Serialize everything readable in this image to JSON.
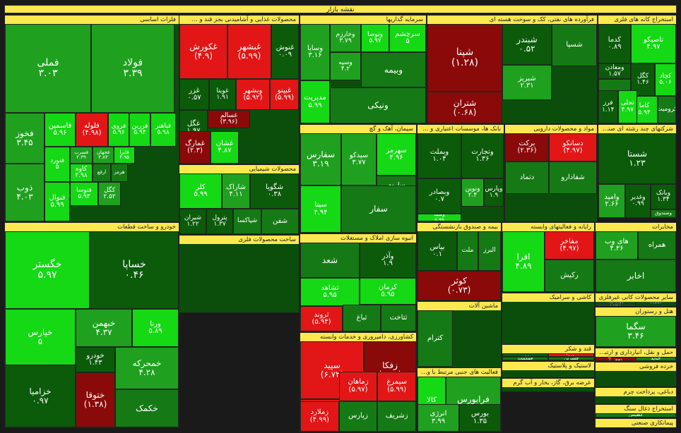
{
  "title": "نقشه بازار",
  "colors": {
    "strong_pos": "#14d914",
    "pos": "#1fa11f",
    "mild_pos": "#157a15",
    "neutral": "#0b5b0b",
    "neg": "#e21616",
    "strong_neg": "#8a0a0a"
  },
  "chart_data": {
    "type": "treemap",
    "sectors": [
      {
        "name": "فلزات اساسی",
        "tiles": [
          {
            "symbol": "فملی",
            "change": "3.03"
          },
          {
            "symbol": "فولاد",
            "change": "3.39"
          },
          {
            "symbol": "فخوز",
            "change": "3.45"
          },
          {
            "symbol": "فاسمین",
            "change": "5.96"
          },
          {
            "symbol": "فلوله",
            "change": "(4.98)"
          },
          {
            "symbol": "فروی",
            "change": "5.96"
          },
          {
            "symbol": "فزرین",
            "change": "5.94"
          },
          {
            "symbol": "فباهنر",
            "change": "5.98"
          },
          {
            "symbol": "فنورد",
            "change": "5"
          },
          {
            "symbol": "فسرب",
            "change": "2.39"
          },
          {
            "symbol": "فجهان",
            "change": "3.83"
          },
          {
            "symbol": "فایرا",
            "change": "4.95"
          },
          {
            "symbol": "ذوب",
            "change": "4.03"
          },
          {
            "symbol": "کاوه",
            "change": "4.98"
          },
          {
            "symbol": "ارفع",
            "change": ""
          },
          {
            "symbol": "هرمز",
            "change": ""
          },
          {
            "symbol": "فتوسا",
            "change": "5.93"
          },
          {
            "symbol": "کگل",
            "change": "2.52"
          },
          {
            "symbol": "فنوال",
            "change": "5.99"
          }
        ]
      },
      {
        "name": "محصولات غذایی و آشامیدنی بجز قند و ...",
        "tiles": [
          {
            "symbol": "غکورش",
            "change": "(4.9)"
          },
          {
            "symbol": "غبشهر",
            "change": "(5.99)"
          },
          {
            "symbol": "غنوش",
            "change": "0.09"
          },
          {
            "symbol": "غزر",
            "change": "0.57"
          },
          {
            "symbol": "غویتا",
            "change": "1.91"
          },
          {
            "symbol": "وبشهر",
            "change": "(5.92)"
          },
          {
            "symbol": "غبینو",
            "change": "(5.99)"
          },
          {
            "symbol": "غگل",
            "change": "1.97"
          },
          {
            "symbol": "غسالم",
            "change": "(3.96)"
          },
          {
            "symbol": "غمارگ",
            "change": "(2.3)"
          },
          {
            "symbol": "غشان",
            "change": "4.87"
          }
        ]
      },
      {
        "name": "سرمایه گذاریها",
        "tiles": [
          {
            "symbol": "وسایا",
            "change": "3.16"
          },
          {
            "symbol": "وخارزم",
            "change": "3.79"
          },
          {
            "symbol": "وتوصا",
            "change": "5.97"
          },
          {
            "symbol": "سرچشم",
            "change": "5"
          },
          {
            "symbol": "وسپه",
            "change": "4.2"
          },
          {
            "symbol": "مدیریت",
            "change": "5.99"
          },
          {
            "symbol": "وبیمه",
            "change": ""
          },
          {
            "symbol": "ونیکی",
            "change": ""
          }
        ]
      },
      {
        "name": "فرآورده های نفتی، کک و سوخت هسته ای",
        "tiles": [
          {
            "symbol": "شپنا",
            "change": "(1.28)"
          },
          {
            "symbol": "شبندر",
            "change": "0.52"
          },
          {
            "symbol": "شبریز",
            "change": "2.31"
          },
          {
            "symbol": "شتران",
            "change": "(0.68)"
          },
          {
            "symbol": "شسپا",
            "change": ""
          }
        ]
      },
      {
        "name": "استخراج کانه های فلزی",
        "tiles": [
          {
            "symbol": "تاصیکو",
            "change": "4.97"
          },
          {
            "symbol": "کدما",
            "change": "0.89"
          },
          {
            "symbol": "کچاد",
            "change": "5.06"
          },
          {
            "symbol": "کگل",
            "change": "1.46"
          },
          {
            "symbol": "ومعادن",
            "change": "1.57"
          },
          {
            "symbol": "کاما",
            "change": "5.94"
          },
          {
            "symbol": "کرومیت",
            "change": ""
          },
          {
            "symbol": "کنور",
            "change": ""
          },
          {
            "symbol": "فرز",
            "change": "1.14"
          },
          {
            "symbol": "تجلی",
            "change": "4.97"
          }
        ]
      },
      {
        "name": "مواد و محصولات دارویی",
        "tiles": [
          {
            "symbol": "برکت",
            "change": "(2.36)"
          },
          {
            "symbol": "دسانکو",
            "change": "(4.97)"
          },
          {
            "symbol": "شفادارو",
            "change": ""
          },
          {
            "symbol": "دتماد",
            "change": ""
          }
        ]
      },
      {
        "name": "شرکتهای چند رشته ای صنعتی",
        "tiles": [
          {
            "symbol": "شستا",
            "change": "1.23"
          },
          {
            "symbol": "وامید",
            "change": "2.66"
          },
          {
            "symbol": "وغدیر",
            "change": "0.99"
          },
          {
            "symbol": "وبانک",
            "change": "1.34"
          },
          {
            "symbol": "وصندوق",
            "change": ""
          }
        ]
      },
      {
        "name": "بانک ها، موسسات اعتباری و ...",
        "tiles": [
          {
            "symbol": "وبملت",
            "change": "1.04"
          },
          {
            "symbol": "وتجارت",
            "change": "1.36"
          },
          {
            "symbol": "وبصادر",
            "change": "0.7"
          },
          {
            "symbol": "وسینا",
            "change": "5.99"
          },
          {
            "symbol": "ونوین",
            "change": "2.4"
          },
          {
            "symbol": "وپارس",
            "change": "1.9"
          }
        ]
      },
      {
        "name": "سیمان، آهک و گچ",
        "tiles": [
          {
            "symbol": "سفارس",
            "change": "3.19"
          },
          {
            "symbol": "سیتا",
            "change": "4.94"
          },
          {
            "symbol": "سیدکو",
            "change": "3.77"
          },
          {
            "symbol": "سهرمز",
            "change": "4.96"
          },
          {
            "symbol": "ساروم",
            "change": ""
          },
          {
            "symbol": "سفار",
            "change": ""
          }
        ]
      },
      {
        "name": "محصولات شیمیایی",
        "tiles": [
          {
            "symbol": "کلر",
            "change": "5.99"
          },
          {
            "symbol": "شاراک",
            "change": "4.11"
          },
          {
            "symbol": "شگویا",
            "change": "0.38"
          },
          {
            "symbol": "شیران",
            "change": "1.22"
          },
          {
            "symbol": "پترول",
            "change": "1.37"
          },
          {
            "symbol": "شپاکسا",
            "change": ""
          },
          {
            "symbol": "شفن",
            "change": ""
          }
        ]
      },
      {
        "name": "خودرو و ساخت قطعات",
        "tiles": [
          {
            "symbol": "خگستر",
            "change": "5.97"
          },
          {
            "symbol": "خساپا",
            "change": "0.46"
          },
          {
            "symbol": "خپارس",
            "change": "5"
          },
          {
            "symbol": "خبهمن",
            "change": "4.37"
          },
          {
            "symbol": "ورنا",
            "change": "5.89"
          },
          {
            "symbol": "خودرو",
            "change": "1.43"
          },
          {
            "symbol": "ختوقا",
            "change": "(1.38)"
          },
          {
            "symbol": "خزامیا",
            "change": "0.97"
          },
          {
            "symbol": "خمحرکه",
            "change": "4.28"
          },
          {
            "symbol": "خکمک",
            "change": ""
          }
        ]
      },
      {
        "name": "انبوه سازی املاک و مستغلات",
        "tiles": [
          {
            "symbol": "شعد",
            "change": ""
          },
          {
            "symbol": "وآذر",
            "change": "1.9"
          },
          {
            "symbol": "ثشاهد",
            "change": "5.95"
          },
          {
            "symbol": "کرمان",
            "change": "5.95"
          },
          {
            "symbol": "ثروند",
            "change": "(5.94)"
          },
          {
            "symbol": "ثباغ",
            "change": ""
          },
          {
            "symbol": "ثتاخت",
            "change": ""
          }
        ]
      },
      {
        "name": "بیمه و صندوق بازنشستگی",
        "tiles": [
          {
            "symbol": "بپاس",
            "change": "0.1"
          },
          {
            "symbol": "ملت",
            "change": ""
          },
          {
            "symbol": "البرز",
            "change": ""
          },
          {
            "symbol": "کوثر",
            "change": "(0.73)"
          }
        ]
      },
      {
        "name": "رایانه و فعالیتهای وابسته",
        "tiles": [
          {
            "symbol": "افرا",
            "change": "4.89"
          },
          {
            "symbol": "مفاخر",
            "change": "(4.97)"
          },
          {
            "symbol": "رکیش",
            "change": ""
          }
        ]
      },
      {
        "name": "مخابرات",
        "tiles": [
          {
            "symbol": "های وب",
            "change": "4.36"
          },
          {
            "symbol": "همراه",
            "change": ""
          },
          {
            "symbol": "اخابر",
            "change": ""
          }
        ]
      },
      {
        "name": "سایر محصولات کانی غیرفلزی",
        "tiles": [
          {
            "symbol": "کفپارس",
            "change": ""
          },
          {
            "symbol": "کهمدا",
            "change": ""
          },
          {
            "symbol": "کسرا",
            "change": ""
          }
        ]
      },
      {
        "name": "کاشی و سرامیک",
        "tiles": []
      },
      {
        "name": "هتل و رستوران",
        "tiles": [
          {
            "symbol": "سگما",
            "change": "3.46"
          }
        ]
      },
      {
        "name": "ماشین آلات",
        "tiles": [
          {
            "symbol": "کترام",
            "change": ""
          }
        ]
      },
      {
        "name": "قند و شکر",
        "tiles": [
          {
            "symbol": "قثابت",
            "change": "0.78"
          },
          {
            "symbol": "قجار",
            "change": "(5)"
          },
          {
            "symbol": "قهکمت",
            "change": ""
          },
          {
            "symbol": "قشرین",
            "change": ""
          }
        ]
      },
      {
        "name": "ساخت محصولات فلزی",
        "tiles": []
      },
      {
        "name": "کشاورزی، دامپروری و خدمات وابسته",
        "tiles": [
          {
            "symbol": "سپید",
            "change": "(6.72)"
          },
          {
            "symbol": "زفکا",
            "change": "(0.18)"
          },
          {
            "symbol": "تلیسه",
            "change": "(7.61)"
          },
          {
            "symbol": "زکوثر",
            "change": "(6.96)"
          },
          {
            "symbol": "زماهان",
            "change": "(5.97)"
          },
          {
            "symbol": "سیمرغ",
            "change": "(5.99)"
          },
          {
            "symbol": "زملارد",
            "change": "(4.99)"
          },
          {
            "symbol": "زپارس",
            "change": ""
          },
          {
            "symbol": "زشریف",
            "change": ""
          }
        ]
      },
      {
        "name": "فعالیت های جنبی مرتبط با واسطه گری",
        "tiles": [
          {
            "symbol": "کالا",
            "change": "5.97"
          },
          {
            "symbol": "فرابورس",
            "change": "4.11"
          },
          {
            "symbol": "انرژی",
            "change": "3.99"
          },
          {
            "symbol": "بورس",
            "change": "1.35"
          }
        ]
      },
      {
        "name": "حمل و نقل، انبارداری و ارتباطات",
        "tiles": [
          {
            "symbol": "حکشتی",
            "change": "(0.44)"
          },
          {
            "symbol": "حتاید",
            "change": ""
          }
        ]
      },
      {
        "name": "لاستیک و پلاستیک",
        "tiles": []
      },
      {
        "name": "عرضه برق، گاز، بخار و آب گرم",
        "tiles": []
      },
      {
        "name": "خرده فروشی",
        "tiles": []
      },
      {
        "name": "دباغی، پرداخت چرم",
        "tiles": []
      },
      {
        "name": "استخراج ذغال سنگ",
        "tiles": [
          {
            "symbol": "کطبس",
            "change": ""
          }
        ]
      },
      {
        "name": "پیمانکاری صنعتی",
        "tiles": []
      },
      {
        "name": "چندرشته ای",
        "tiles": []
      }
    ]
  }
}
